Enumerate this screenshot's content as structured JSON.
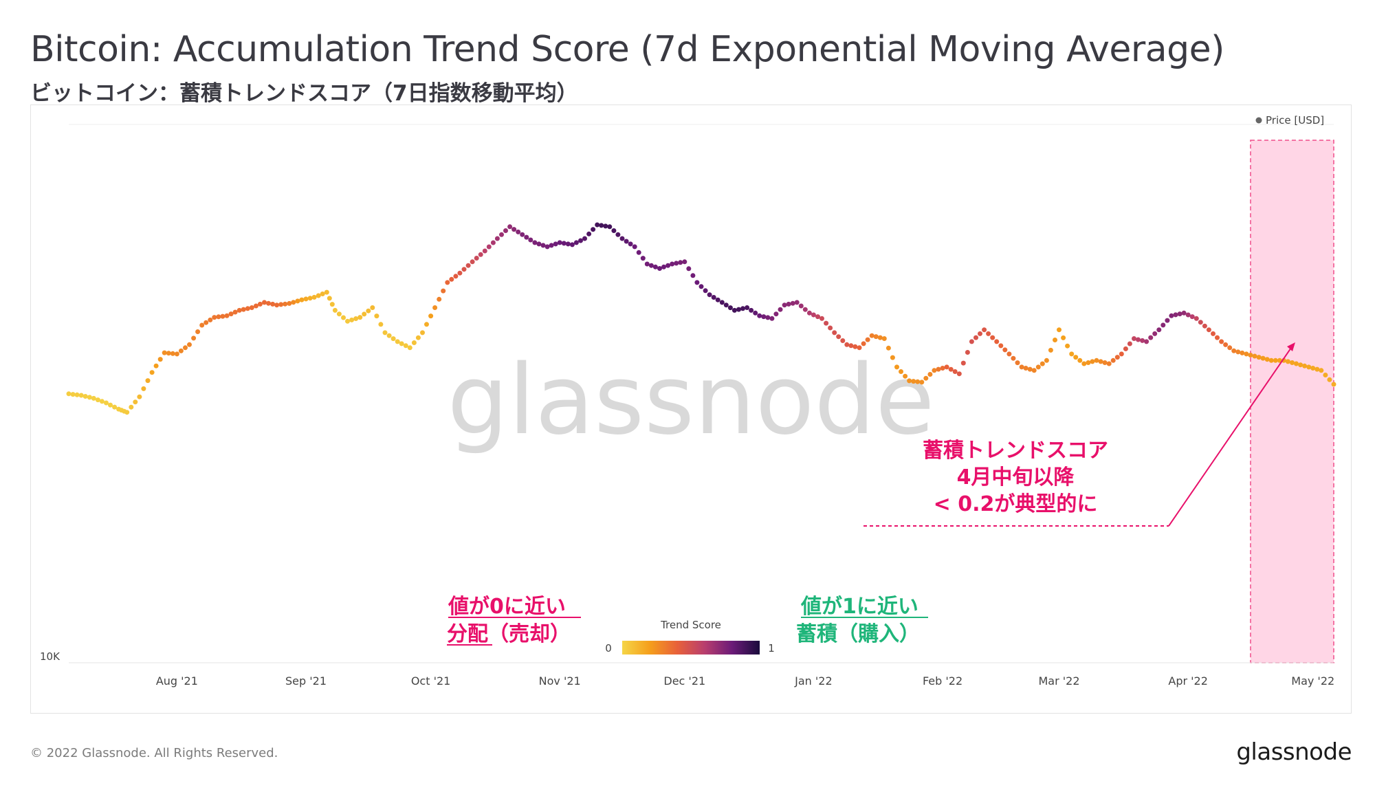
{
  "header": {
    "title": "Bitcoin: Accumulation Trend Score (7d Exponential Moving Average)",
    "subtitle": "ビットコイン：蓄積トレンドスコア（7日指数移動平均）"
  },
  "watermark": "glassnode",
  "footer": {
    "copyright": "© 2022 Glassnode. All Rights Reserved.",
    "logo": "glassnode"
  },
  "annotations": {
    "callout_lines": [
      "蓄積トレンドスコア",
      "4月中旬以降",
      "< 0.2が典型的に"
    ],
    "distribution_lines": [
      "値が0に近い",
      "分配（売却）"
    ],
    "accumulation_lines": [
      "値が1に近い",
      "蓄積（購入）"
    ],
    "distribution_color": "#e8106a",
    "accumulation_color": "#1fb57a",
    "highlight_color": "#ffd6e6",
    "highlight_border": "#f04d8a"
  },
  "chart_data": {
    "type": "scatter",
    "title": "Bitcoin: Accumulation Trend Score (7d Exponential Moving Average)",
    "legend": {
      "entries": [
        "Price [USD]"
      ],
      "placement": "top-right"
    },
    "colorbar": {
      "label": "Trend Score",
      "min_label": "0",
      "max_label": "1",
      "colors": [
        "#f5d547",
        "#f59f1c",
        "#e8613a",
        "#b83e6e",
        "#6b1b78",
        "#1a0b3c"
      ]
    },
    "y_tick_labels": [
      "10K"
    ],
    "x_tick_labels": [
      "Aug '21",
      "Sep '21",
      "Oct '21",
      "Nov '21",
      "Dec '21",
      "Jan '22",
      "Feb '22",
      "Mar '22",
      "Apr '22",
      "May '22"
    ],
    "grid": "horizontal",
    "highlight_range": [
      "2022-04-16",
      "2022-05-06"
    ],
    "x": [
      "2021-07-06",
      "2021-07-09",
      "2021-07-12",
      "2021-07-15",
      "2021-07-18",
      "2021-07-20",
      "2021-07-23",
      "2021-07-26",
      "2021-07-29",
      "2021-08-01",
      "2021-08-04",
      "2021-08-07",
      "2021-08-10",
      "2021-08-13",
      "2021-08-16",
      "2021-08-19",
      "2021-08-22",
      "2021-08-25",
      "2021-08-28",
      "2021-08-31",
      "2021-09-03",
      "2021-09-06",
      "2021-09-08",
      "2021-09-11",
      "2021-09-14",
      "2021-09-17",
      "2021-09-20",
      "2021-09-23",
      "2021-09-26",
      "2021-09-29",
      "2021-10-02",
      "2021-10-05",
      "2021-10-08",
      "2021-10-11",
      "2021-10-14",
      "2021-10-17",
      "2021-10-20",
      "2021-10-23",
      "2021-10-26",
      "2021-10-29",
      "2021-11-01",
      "2021-11-04",
      "2021-11-07",
      "2021-11-10",
      "2021-11-13",
      "2021-11-16",
      "2021-11-19",
      "2021-11-22",
      "2021-11-25",
      "2021-11-28",
      "2021-12-01",
      "2021-12-04",
      "2021-12-07",
      "2021-12-10",
      "2021-12-13",
      "2021-12-16",
      "2021-12-19",
      "2021-12-22",
      "2021-12-25",
      "2021-12-28",
      "2021-12-31",
      "2022-01-03",
      "2022-01-06",
      "2022-01-09",
      "2022-01-12",
      "2022-01-15",
      "2022-01-18",
      "2022-01-21",
      "2022-01-24",
      "2022-01-27",
      "2022-01-30",
      "2022-02-02",
      "2022-02-05",
      "2022-02-08",
      "2022-02-11",
      "2022-02-14",
      "2022-02-17",
      "2022-02-20",
      "2022-02-23",
      "2022-02-26",
      "2022-03-01",
      "2022-03-04",
      "2022-03-07",
      "2022-03-10",
      "2022-03-13",
      "2022-03-16",
      "2022-03-19",
      "2022-03-22",
      "2022-03-25",
      "2022-03-28",
      "2022-03-31",
      "2022-04-03",
      "2022-04-06",
      "2022-04-09",
      "2022-04-12",
      "2022-04-15",
      "2022-04-18",
      "2022-04-21",
      "2022-04-24",
      "2022-04-27",
      "2022-04-30",
      "2022-05-03",
      "2022-05-06"
    ],
    "price_usd": [
      34200,
      34000,
      33600,
      33000,
      32200,
      31800,
      33800,
      37200,
      40200,
      40000,
      41500,
      44800,
      46200,
      46500,
      47500,
      48000,
      49000,
      48500,
      48800,
      49500,
      50000,
      51000,
      47500,
      45500,
      46200,
      48000,
      43500,
      42000,
      41000,
      43500,
      48000,
      53000,
      55000,
      57500,
      60000,
      63000,
      66000,
      64000,
      62000,
      61000,
      62000,
      61500,
      63000,
      66500,
      66000,
      63000,
      61000,
      57000,
      56000,
      57000,
      57500,
      53000,
      50500,
      49000,
      47500,
      48000,
      46500,
      46000,
      48500,
      49000,
      47000,
      46000,
      43500,
      41500,
      41000,
      43000,
      42500,
      38000,
      36000,
      35800,
      37500,
      38000,
      37000,
      42000,
      44000,
      42000,
      40000,
      38000,
      37500,
      39000,
      44000,
      40000,
      38500,
      39000,
      38500,
      40000,
      42500,
      42000,
      44000,
      46500,
      47000,
      46000,
      44000,
      42000,
      40500,
      40000,
      39500,
      39000,
      39000,
      38500,
      38000,
      37500,
      35500
    ],
    "trend_score": [
      0.03,
      0.03,
      0.02,
      0.02,
      0.03,
      0.04,
      0.1,
      0.18,
      0.25,
      0.27,
      0.28,
      0.3,
      0.33,
      0.34,
      0.35,
      0.36,
      0.37,
      0.36,
      0.3,
      0.18,
      0.12,
      0.1,
      0.06,
      0.05,
      0.08,
      0.1,
      0.06,
      0.05,
      0.05,
      0.1,
      0.25,
      0.38,
      0.45,
      0.5,
      0.58,
      0.66,
      0.7,
      0.75,
      0.76,
      0.77,
      0.8,
      0.82,
      0.85,
      0.9,
      0.9,
      0.85,
      0.8,
      0.78,
      0.8,
      0.78,
      0.76,
      0.8,
      0.85,
      0.88,
      0.9,
      0.88,
      0.8,
      0.75,
      0.72,
      0.7,
      0.62,
      0.52,
      0.48,
      0.45,
      0.4,
      0.3,
      0.25,
      0.22,
      0.24,
      0.25,
      0.28,
      0.4,
      0.45,
      0.48,
      0.45,
      0.4,
      0.35,
      0.3,
      0.28,
      0.25,
      0.2,
      0.18,
      0.22,
      0.25,
      0.3,
      0.4,
      0.55,
      0.65,
      0.72,
      0.74,
      0.7,
      0.55,
      0.45,
      0.38,
      0.3,
      0.25,
      0.22,
      0.2,
      0.18,
      0.18,
      0.17,
      0.16,
      0.15
    ]
  }
}
